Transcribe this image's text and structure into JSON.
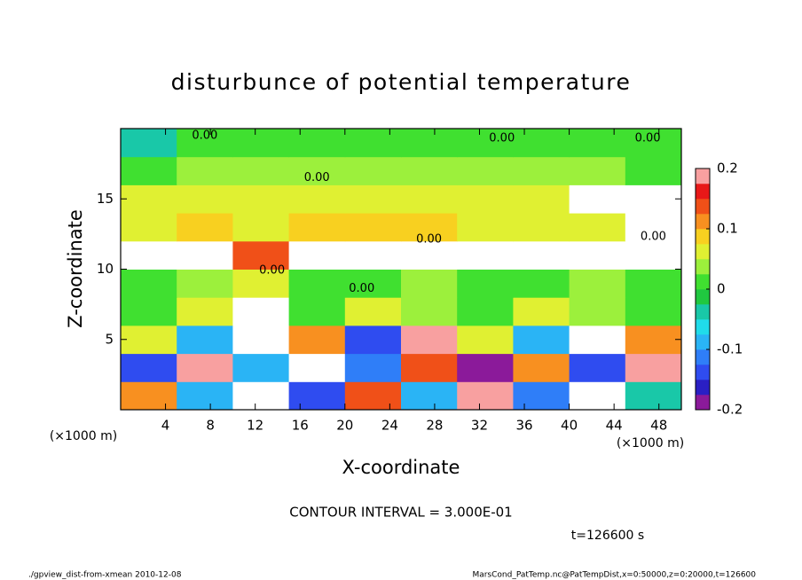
{
  "chart_data": {
    "type": "heatmap",
    "title": "disturbunce of potential temperature",
    "x_label": "X-coordinate",
    "y_label": "Z-coordinate",
    "x_unit": "(×1000 m)",
    "y_unit": "(×1000 m)",
    "xlim": [
      0,
      50
    ],
    "xticks": [
      4,
      8,
      12,
      16,
      20,
      24,
      28,
      32,
      36,
      40,
      44,
      48
    ],
    "ylim": [
      0,
      20
    ],
    "yticks": [
      5,
      10,
      15
    ],
    "x": [
      2.5,
      7.5,
      12.5,
      17.5,
      22.5,
      27.5,
      32.5,
      37.5,
      42.5,
      47.5
    ],
    "z": [
      1,
      3,
      5,
      7,
      9,
      11,
      13,
      15,
      17,
      19
    ],
    "values": [
      [
        0.1,
        -0.1,
        0.25,
        -0.15,
        0.15,
        -0.1,
        0.2,
        -0.12,
        0.3,
        -0.05
      ],
      [
        -0.15,
        0.2,
        -0.1,
        0.25,
        -0.12,
        0.15,
        -0.2,
        0.1,
        -0.15,
        0.2
      ],
      [
        0.05,
        -0.1,
        0.3,
        0.1,
        -0.15,
        0.2,
        0.05,
        -0.1,
        0.25,
        0.1
      ],
      [
        0.02,
        0.05,
        0.3,
        0.02,
        0.05,
        0.03,
        0.02,
        0.05,
        0.03,
        0.02
      ],
      [
        0.02,
        0.03,
        0.05,
        0.02,
        0.0,
        0.03,
        0.02,
        0.0,
        0.03,
        0.02
      ],
      [
        0.3,
        0.3,
        0.15,
        0.3,
        0.3,
        0.3,
        0.3,
        0.3,
        0.3,
        0.3
      ],
      [
        0.07,
        0.08,
        0.07,
        0.08,
        0.09,
        0.08,
        0.07,
        0.06,
        0.05,
        0.3
      ],
      [
        0.05,
        0.06,
        0.06,
        0.07,
        0.07,
        0.06,
        0.05,
        0.05,
        0.3,
        0.3
      ],
      [
        0.02,
        0.03,
        0.03,
        0.03,
        0.03,
        0.03,
        0.03,
        0.03,
        0.03,
        0.02
      ],
      [
        -0.05,
        0.01,
        0.0,
        0.01,
        0.01,
        0.01,
        0.01,
        0.0,
        0.01,
        0.01
      ]
    ],
    "colorbar": {
      "range": [
        -0.2,
        0.2
      ],
      "ticks": [
        -0.2,
        -0.1,
        0,
        0.1,
        0.2
      ],
      "colors": [
        "#8b1a9a",
        "#2a1fc4",
        "#2f4cf0",
        "#2f7ef8",
        "#2ab4f5",
        "#20dcea",
        "#19c8a8",
        "#20c840",
        "#40e030",
        "#9cf03c",
        "#e0f032",
        "#f8d020",
        "#f89020",
        "#f05018",
        "#e81818",
        "#f8a0a0"
      ],
      "out_of_range_color": "#ffffff"
    },
    "contour_labels": [
      {
        "text": "0.00",
        "x": 7.5,
        "z": 19.5
      },
      {
        "text": "0.00",
        "x": 34,
        "z": 19.3
      },
      {
        "text": "0.00",
        "x": 47,
        "z": 19.3
      },
      {
        "text": "0.00",
        "x": 17.5,
        "z": 16.5
      },
      {
        "text": "0.00",
        "x": 27.5,
        "z": 12.1
      },
      {
        "text": "0.00",
        "x": 47.5,
        "z": 12.3
      },
      {
        "text": "0.00",
        "x": 13.5,
        "z": 9.9
      },
      {
        "text": "0.00",
        "x": 21.5,
        "z": 8.6
      }
    ],
    "contour_interval": "CONTOUR INTERVAL = 3.000E-01",
    "time_label": "t=126600 s",
    "footer_left": "./gpview_dist-from-xmean  2010-12-08",
    "footer_right": "MarsCond_PatTemp.nc@PatTempDist,x=0:50000,z=0:20000,t=126600"
  }
}
